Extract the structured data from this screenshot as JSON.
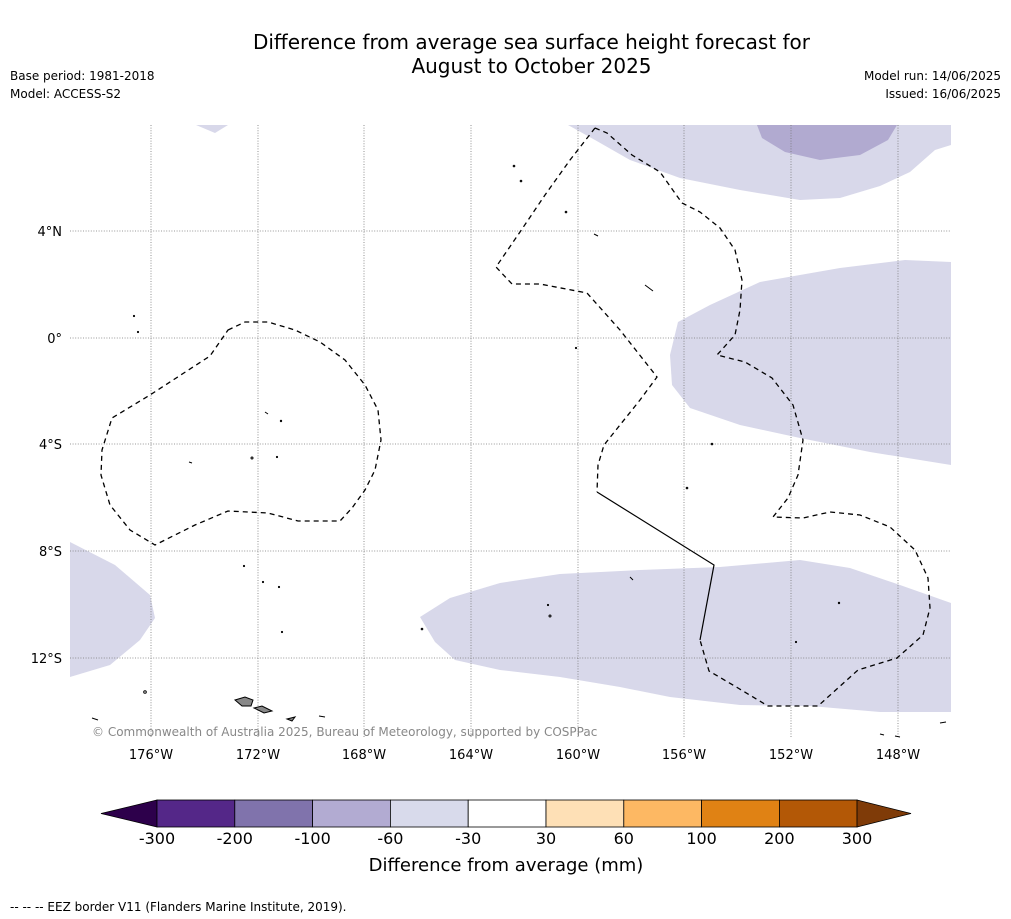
{
  "title": {
    "line1": "Difference from average sea surface height forecast for",
    "line2": "August to October 2025"
  },
  "meta_left": {
    "base_period": "Base period: 1981-2018",
    "model": "Model: ACCESS-S2"
  },
  "meta_right": {
    "model_run": "Model run: 14/06/2025",
    "issued": "Issued: 16/06/2025"
  },
  "map": {
    "lat_ticks": [
      "4°N",
      "0°",
      "4°S",
      "8°S",
      "12°S"
    ],
    "lon_ticks": [
      "176°W",
      "172°W",
      "168°W",
      "164°W",
      "160°W",
      "156°W",
      "152°W",
      "148°W"
    ],
    "copyright": "© Commonwealth of Australia 2025, Bureau of Meteorology, supported by COSPPac",
    "anomaly_fill_color": "#d8d8ea",
    "anomaly_dark_fill_color": "#b1aad0",
    "eez_line_color": "#000000"
  },
  "colorbar": {
    "title": "Difference from average (mm)",
    "labels": [
      "-300",
      "-200",
      "-100",
      "-60",
      "-30",
      "30",
      "60",
      "100",
      "200",
      "300"
    ],
    "colors": [
      "#2d004b",
      "#542788",
      "#8073ac",
      "#b2abd2",
      "#d8daeb",
      "#ffffff",
      "#fee0b6",
      "#fdb863",
      "#e08214",
      "#b35806",
      "#7f3b08"
    ]
  },
  "footer": "--  --  -- EEZ border V11 (Flanders Marine Institute, 2019)."
}
